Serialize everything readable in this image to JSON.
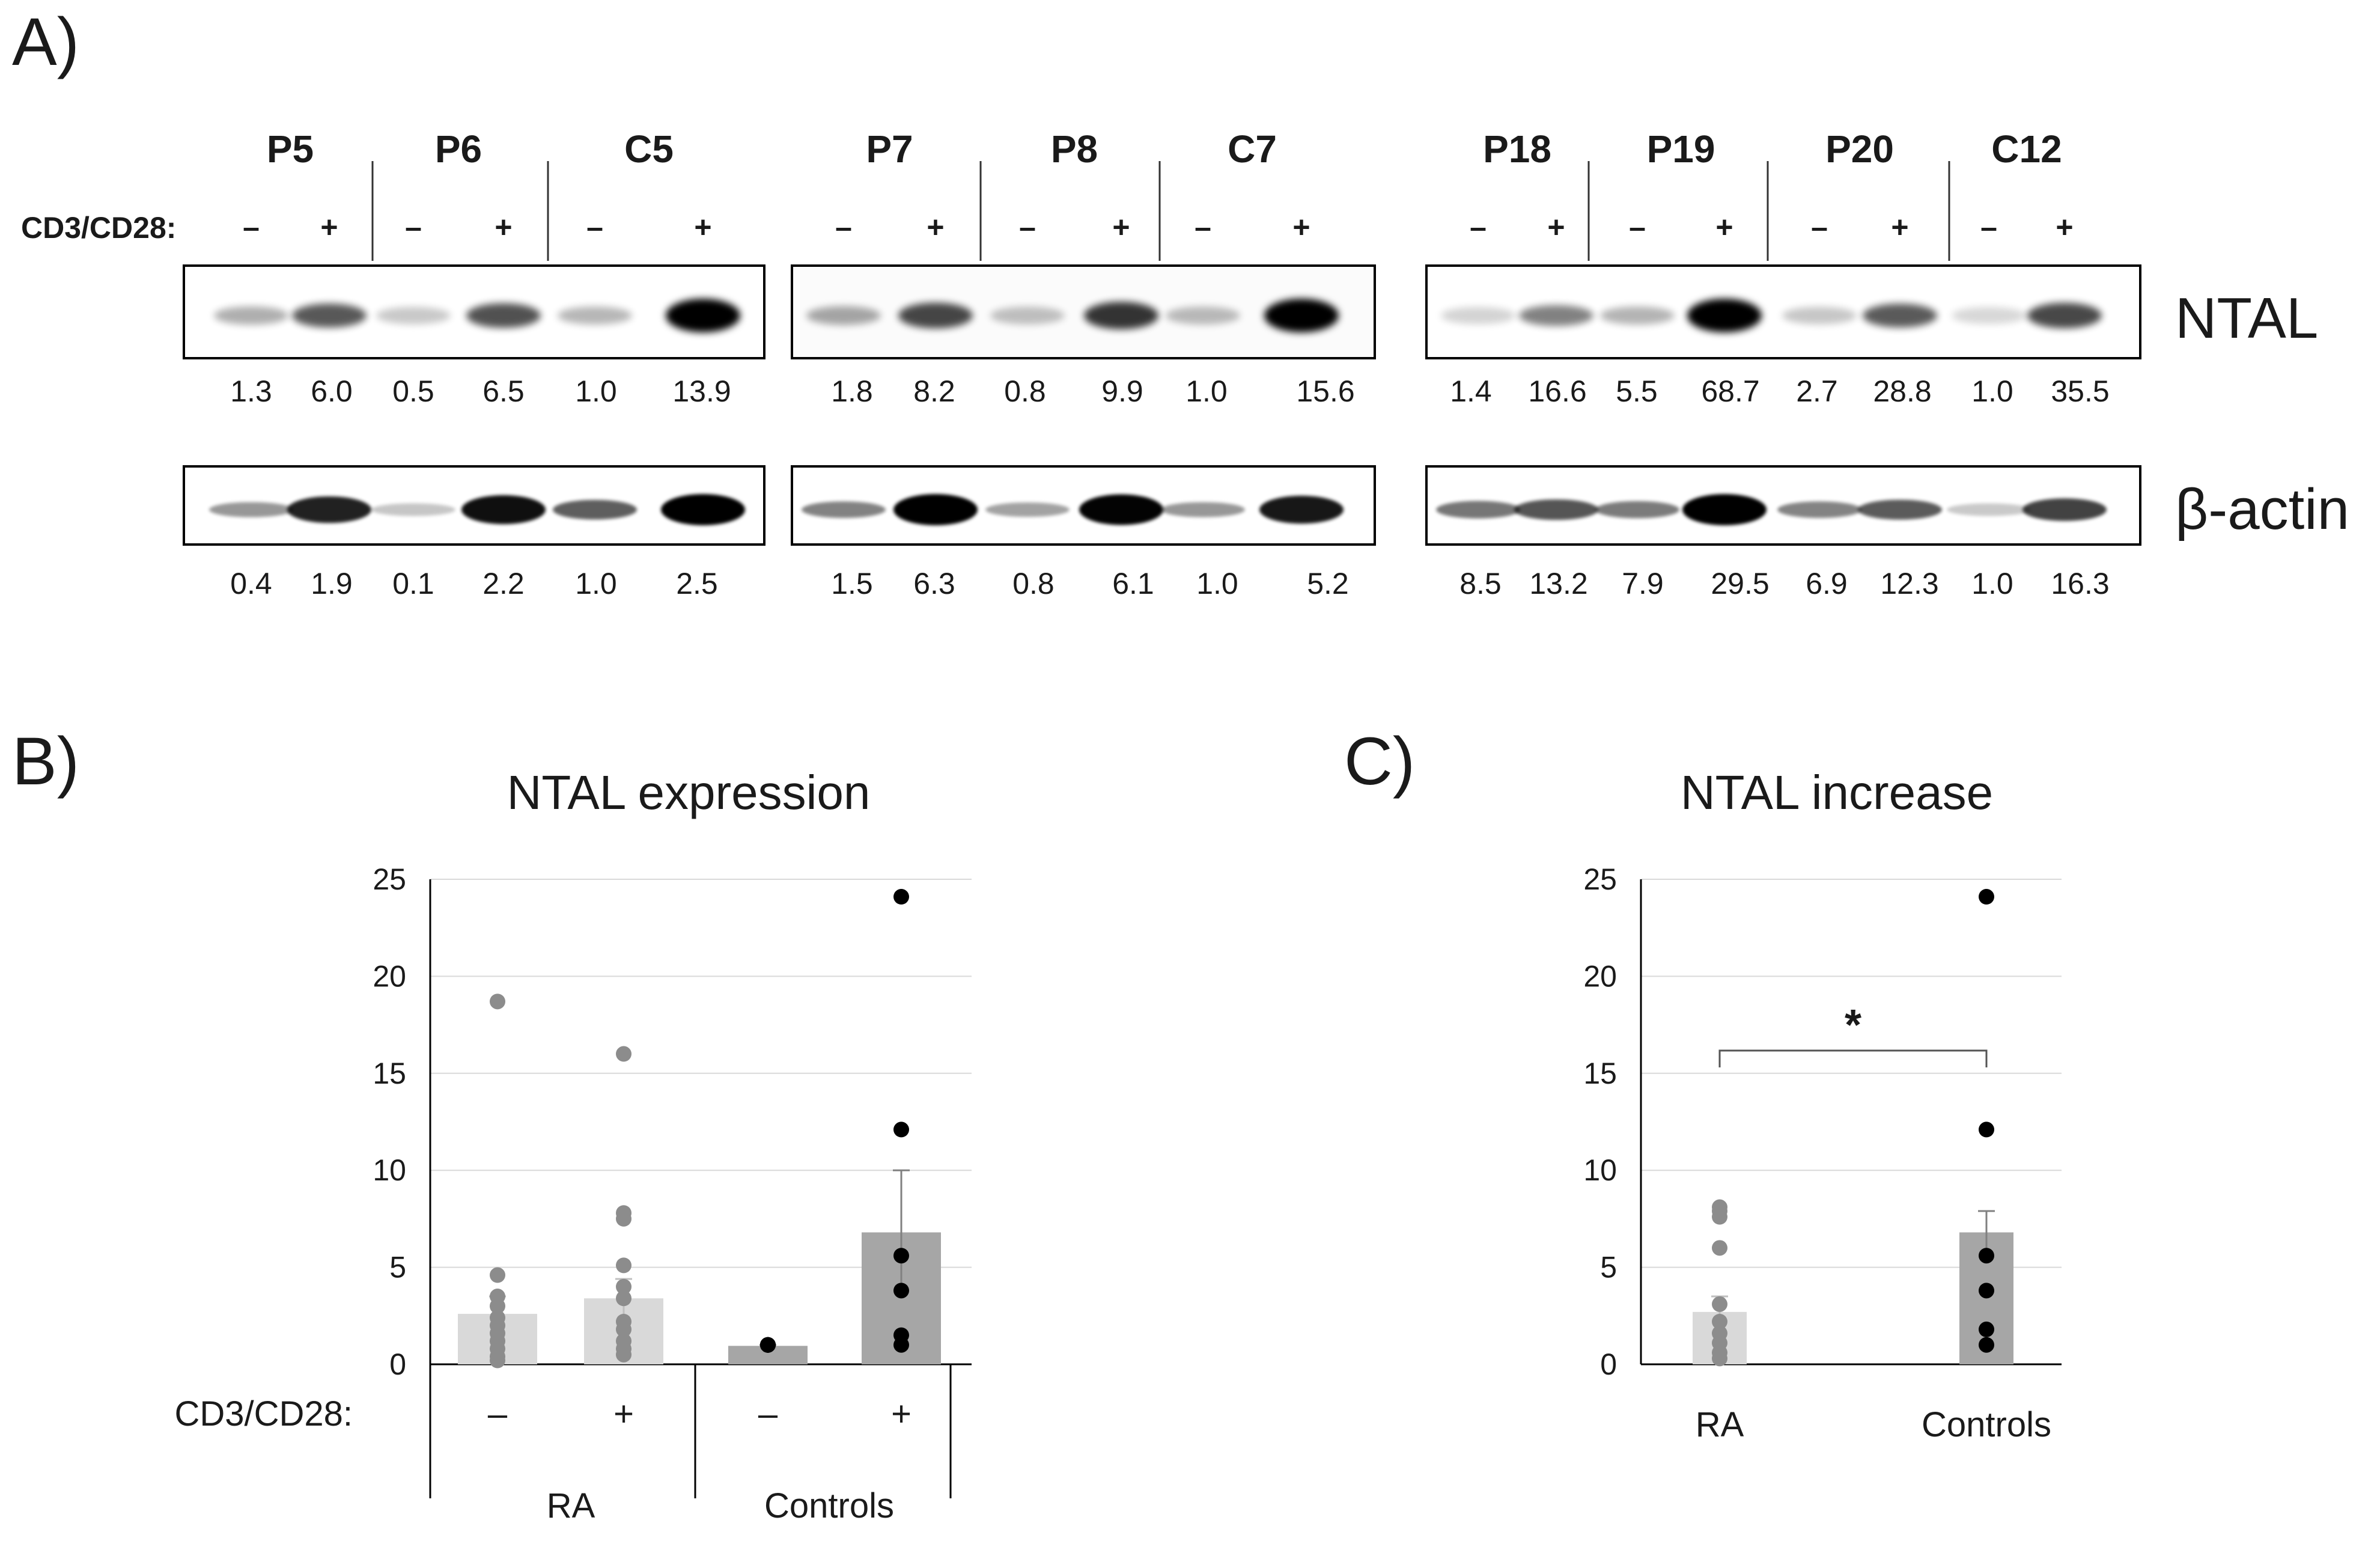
{
  "panels": {
    "a": "A)",
    "b": "B)",
    "c": "C)"
  },
  "blot": {
    "treatment_label": "CD3/CD28:",
    "minus": "–",
    "plus": "+",
    "ntal_label": "NTAL",
    "actin_label": "β-actin",
    "groups": [
      {
        "samples": [
          {
            "name": "P5",
            "ntal": [
              "1.3",
              "6.0"
            ],
            "actin": [
              "0.4",
              "1.9"
            ]
          },
          {
            "name": "P6",
            "ntal": [
              "0.5",
              "6.5"
            ],
            "actin": [
              "0.1",
              "2.2"
            ]
          },
          {
            "name": "C5",
            "ntal": [
              "1.0",
              "13.9"
            ],
            "actin": [
              "1.0",
              "2.5"
            ]
          }
        ]
      },
      {
        "samples": [
          {
            "name": "P7",
            "ntal": [
              "1.8",
              "8.2"
            ],
            "actin": [
              "1.5",
              "6.3"
            ]
          },
          {
            "name": "P8",
            "ntal": [
              "0.8",
              "9.9"
            ],
            "actin": [
              "0.8",
              "6.1"
            ]
          },
          {
            "name": "C7",
            "ntal": [
              "1.0",
              "15.6"
            ],
            "actin": [
              "1.0",
              "5.2"
            ]
          }
        ]
      },
      {
        "samples": [
          {
            "name": "P18",
            "ntal": [
              "1.4",
              "16.6"
            ],
            "actin": [
              "8.5",
              "13.2"
            ]
          },
          {
            "name": "P19",
            "ntal": [
              "5.5",
              "68.7"
            ],
            "actin": [
              "7.9",
              "29.5"
            ]
          },
          {
            "name": "P20",
            "ntal": [
              "2.7",
              "28.8"
            ],
            "actin": [
              "6.9",
              "12.3"
            ]
          },
          {
            "name": "C12",
            "ntal": [
              "1.0",
              "35.5"
            ],
            "actin": [
              "1.0",
              "16.3"
            ]
          }
        ]
      }
    ]
  },
  "chart_data": [
    {
      "type": "bar",
      "title": "NTAL expression",
      "treatment_label": "CD3/CD28:",
      "groups": [
        "RA",
        "Controls"
      ],
      "categories": [
        "–",
        "+",
        "–",
        "+"
      ],
      "category_groups": [
        "RA",
        "RA",
        "Controls",
        "Controls"
      ],
      "values": [
        2.6,
        3.4,
        0.95,
        6.8
      ],
      "errors": [
        0.9,
        1.0,
        0.05,
        3.2
      ],
      "bar_colors": [
        "#d9d9d9",
        "#d9d9d9",
        "#a6a6a6",
        "#a6a6a6"
      ],
      "point_colors": [
        "#8c8c8c",
        "#8c8c8c",
        "#000000",
        "#000000"
      ],
      "points": [
        [
          18.7,
          4.6,
          3.5,
          3.0,
          2.4,
          2.0,
          1.6,
          1.2,
          0.8,
          0.4,
          0.2
        ],
        [
          16.0,
          7.8,
          7.5,
          5.1,
          4.0,
          3.4,
          2.2,
          1.8,
          1.2,
          0.8,
          0.5
        ],
        [
          1.0,
          1.0,
          1.0,
          1.0,
          1.0,
          1.0
        ],
        [
          24.1,
          12.1,
          5.6,
          3.8,
          1.5,
          1.0
        ]
      ],
      "ylim": [
        0,
        25
      ],
      "yticks": [
        0,
        5,
        10,
        15,
        20,
        25
      ],
      "grid": true
    },
    {
      "type": "bar",
      "title": "NTAL increase",
      "categories": [
        "RA",
        "Controls"
      ],
      "values": [
        2.7,
        6.8
      ],
      "errors": [
        0.8,
        1.1
      ],
      "bar_colors": [
        "#d9d9d9",
        "#a6a6a6"
      ],
      "point_colors": [
        "#8c8c8c",
        "#000000"
      ],
      "points": [
        [
          8.1,
          7.9,
          7.6,
          6.0,
          3.1,
          2.2,
          1.6,
          1.1,
          0.6,
          0.3
        ],
        [
          24.1,
          12.1,
          5.6,
          3.8,
          1.8,
          1.0
        ]
      ],
      "significance": "*",
      "ylim": [
        0,
        25
      ],
      "yticks": [
        0,
        5,
        10,
        15,
        20,
        25
      ],
      "grid": true
    }
  ]
}
